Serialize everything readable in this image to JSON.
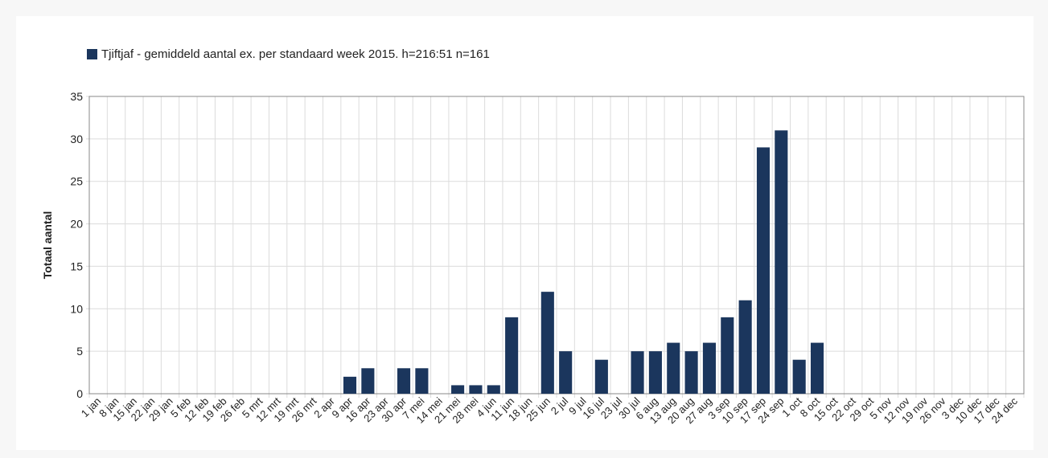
{
  "chart_data": {
    "type": "bar",
    "legend": "Tjiftjaf - gemiddeld aantal ex. per standaard week 2015. h=216:51 n=161",
    "ylabel": "Totaal aantal",
    "categories": [
      "1 jan",
      "8 jan",
      "15 jan",
      "22 jan",
      "29 jan",
      "5 feb",
      "12 feb",
      "19 feb",
      "26 feb",
      "5 mrt",
      "12 mrt",
      "19 mrt",
      "26 mrt",
      "2 apr",
      "9 apr",
      "16 apr",
      "23 apr",
      "30 apr",
      "7 mei",
      "14 mei",
      "21 mei",
      "28 mei",
      "4 jun",
      "11 jun",
      "18 jun",
      "25 jun",
      "2 jul",
      "9 jul",
      "16 jul",
      "23 jul",
      "30 jul",
      "6 aug",
      "13 aug",
      "20 aug",
      "27 aug",
      "3 sep",
      "10 sep",
      "17 sep",
      "24 sep",
      "1 oct",
      "8 oct",
      "15 oct",
      "22 oct",
      "29 oct",
      "5 nov",
      "12 nov",
      "19 nov",
      "26 nov",
      "3 dec",
      "10 dec",
      "17 dec",
      "24 dec"
    ],
    "values": [
      0,
      0,
      0,
      0,
      0,
      0,
      0,
      0,
      0,
      0,
      0,
      0,
      0,
      0,
      2,
      3,
      0,
      3,
      3,
      0,
      1,
      1,
      1,
      9,
      0,
      12,
      5,
      0,
      4,
      0,
      5,
      5,
      6,
      5,
      6,
      9,
      11,
      29,
      31,
      4,
      6,
      0,
      0,
      0,
      0,
      0,
      0,
      0,
      0,
      0,
      0,
      0
    ],
    "color": "#1b365d",
    "ylim": [
      0,
      35
    ],
    "yticks": [
      0,
      5,
      10,
      15,
      20,
      25,
      30,
      35
    ],
    "grid": true
  }
}
